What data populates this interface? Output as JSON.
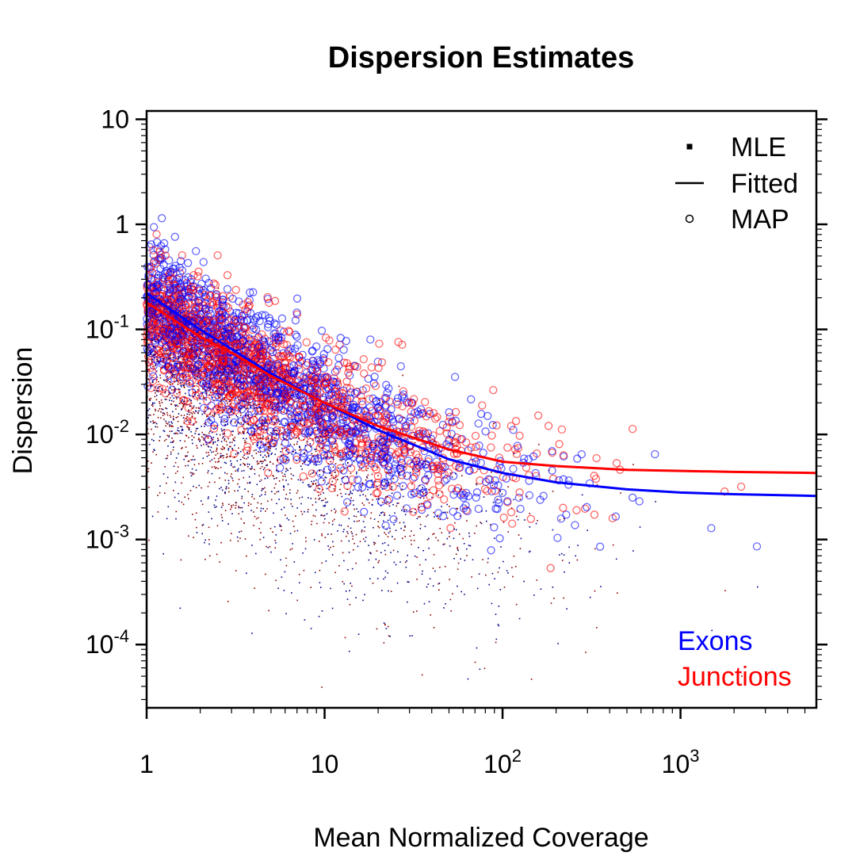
{
  "chart_data": {
    "type": "scatter",
    "title": "Dispersion Estimates",
    "xlabel": "Mean Normalized Coverage",
    "ylabel": "Dispersion",
    "x_scale": "log",
    "y_scale": "log",
    "xlim": [
      1,
      5800
    ],
    "ylim": [
      2.5e-05,
      12
    ],
    "x_ticks": [
      {
        "value": 1,
        "label": "1",
        "exp": ""
      },
      {
        "value": 10,
        "label": "10",
        "exp": ""
      },
      {
        "value": 100,
        "label": "10",
        "exp": "2"
      },
      {
        "value": 1000,
        "label": "10",
        "exp": "3"
      }
    ],
    "y_ticks": [
      {
        "value": 10,
        "label": "10",
        "exp": ""
      },
      {
        "value": 1,
        "label": "1",
        "exp": ""
      },
      {
        "value": 0.1,
        "label": "10",
        "exp": "-1"
      },
      {
        "value": 0.01,
        "label": "10",
        "exp": "-2"
      },
      {
        "value": 0.001,
        "label": "10",
        "exp": "-3"
      },
      {
        "value": 0.0001,
        "label": "10",
        "exp": "-4"
      }
    ],
    "legend": {
      "placement": "top-right",
      "entries": [
        {
          "symbol": "point",
          "label": "MLE"
        },
        {
          "symbol": "line",
          "label": "Fitted"
        },
        {
          "symbol": "circle",
          "label": "MAP"
        }
      ]
    },
    "groups": [
      {
        "name": "Exons",
        "color": "#0000ff",
        "point_color": "#00008b"
      },
      {
        "name": "Junctions",
        "color": "#ff0000",
        "point_color": "#8b0000"
      }
    ],
    "series": [
      {
        "name": "Exons",
        "kind": "fitted",
        "color": "#0000ff",
        "x": [
          1,
          2,
          3,
          5,
          10,
          20,
          50,
          100,
          200,
          500,
          1000,
          2000,
          5800
        ],
        "y": [
          0.22,
          0.1,
          0.065,
          0.038,
          0.02,
          0.011,
          0.0058,
          0.0043,
          0.0035,
          0.003,
          0.0028,
          0.0027,
          0.0026
        ]
      },
      {
        "name": "Junctions",
        "kind": "fitted",
        "color": "#ff0000",
        "x": [
          1,
          2,
          3,
          5,
          10,
          20,
          50,
          100,
          200,
          500,
          1000,
          2000,
          5800
        ],
        "y": [
          0.18,
          0.085,
          0.06,
          0.036,
          0.02,
          0.012,
          0.0072,
          0.0055,
          0.005,
          0.0046,
          0.0045,
          0.0044,
          0.0043
        ]
      }
    ]
  }
}
